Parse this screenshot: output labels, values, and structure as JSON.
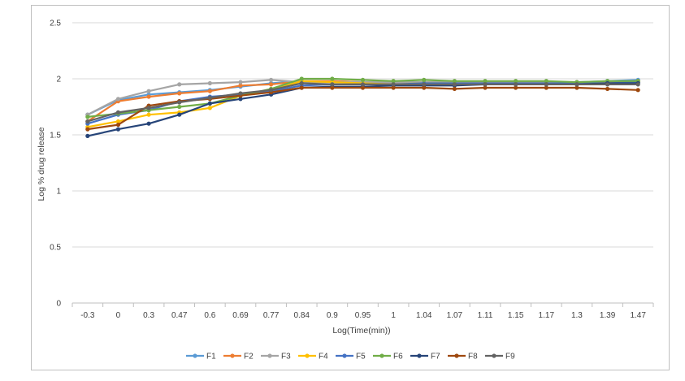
{
  "chart_data": {
    "type": "line",
    "title": "",
    "xlabel": "Log(Time(min))",
    "ylabel": "Log % drug release",
    "categories": [
      "-0.3",
      "0",
      "0.3",
      "0.47",
      "0.6",
      "0.69",
      "0.77",
      "0.84",
      "0.9",
      "0.95",
      "1",
      "1.04",
      "1.07",
      "1.11",
      "1.15",
      "1.17",
      "1.3",
      "1.39",
      "1.47"
    ],
    "ylim": [
      0,
      2.5
    ],
    "yticks": [
      "0",
      "0.5",
      "1",
      "1.5",
      "2",
      "2.5"
    ],
    "grid": true,
    "legend_position": "bottom",
    "series": [
      {
        "name": "F1",
        "color": "#5b9bd5",
        "values": [
          1.68,
          1.81,
          1.86,
          1.88,
          1.9,
          1.93,
          1.96,
          1.98,
          1.98,
          1.97,
          1.97,
          1.97,
          1.97,
          1.97,
          1.97,
          1.97,
          1.97,
          1.98,
          1.99
        ]
      },
      {
        "name": "F2",
        "color": "#ed7d31",
        "values": [
          1.62,
          1.8,
          1.84,
          1.87,
          1.89,
          1.94,
          1.95,
          1.98,
          1.98,
          1.97,
          1.97,
          1.97,
          1.97,
          1.97,
          1.97,
          1.97,
          1.97,
          1.97,
          1.98
        ]
      },
      {
        "name": "F3",
        "color": "#a5a5a5",
        "values": [
          1.68,
          1.82,
          1.89,
          1.95,
          1.96,
          1.97,
          1.99,
          1.97,
          1.97,
          1.97,
          1.97,
          1.97,
          1.97,
          1.97,
          1.97,
          1.97,
          1.97,
          1.97,
          1.97
        ]
      },
      {
        "name": "F4",
        "color": "#ffc000",
        "values": [
          1.57,
          1.62,
          1.68,
          1.7,
          1.74,
          1.85,
          1.9,
          1.98,
          1.97,
          1.96,
          1.95,
          1.96,
          1.96,
          1.96,
          1.96,
          1.96,
          1.96,
          1.96,
          1.97
        ]
      },
      {
        "name": "F5",
        "color": "#4472c4",
        "values": [
          1.6,
          1.68,
          1.72,
          1.8,
          1.84,
          1.86,
          1.89,
          1.94,
          1.95,
          1.95,
          1.95,
          1.96,
          1.96,
          1.96,
          1.96,
          1.96,
          1.96,
          1.96,
          1.97
        ]
      },
      {
        "name": "F6",
        "color": "#70ad47",
        "values": [
          1.66,
          1.69,
          1.72,
          1.75,
          1.78,
          1.85,
          1.91,
          2.0,
          2.0,
          1.99,
          1.98,
          1.99,
          1.98,
          1.98,
          1.98,
          1.98,
          1.97,
          1.98,
          1.98
        ]
      },
      {
        "name": "F7",
        "color": "#264478",
        "values": [
          1.49,
          1.55,
          1.6,
          1.68,
          1.78,
          1.82,
          1.86,
          1.92,
          1.93,
          1.93,
          1.94,
          1.94,
          1.94,
          1.95,
          1.95,
          1.95,
          1.95,
          1.96,
          1.96
        ]
      },
      {
        "name": "F8",
        "color": "#9e480e",
        "values": [
          1.55,
          1.59,
          1.76,
          1.8,
          1.82,
          1.85,
          1.88,
          1.92,
          1.92,
          1.92,
          1.92,
          1.92,
          1.91,
          1.92,
          1.92,
          1.92,
          1.92,
          1.91,
          1.9
        ]
      },
      {
        "name": "F9",
        "color": "#636363",
        "values": [
          1.62,
          1.7,
          1.74,
          1.79,
          1.83,
          1.87,
          1.9,
          1.96,
          1.95,
          1.95,
          1.95,
          1.95,
          1.95,
          1.95,
          1.95,
          1.95,
          1.95,
          1.95,
          1.95
        ]
      }
    ]
  }
}
